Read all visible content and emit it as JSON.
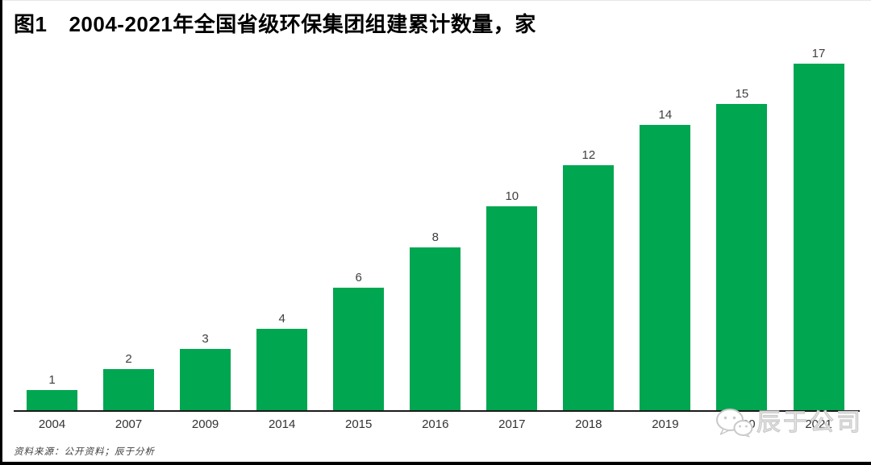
{
  "header": {
    "figure_label": "图1",
    "title": "2004-2021年全国省级环保集团组建累计数量，家"
  },
  "chart_data": {
    "type": "bar",
    "title": "图1 2004-2021年全国省级环保集团组建累计数量，家",
    "categories": [
      "2004",
      "2007",
      "2009",
      "2014",
      "2015",
      "2016",
      "2017",
      "2018",
      "2019",
      "2020",
      "2021"
    ],
    "values": [
      1,
      2,
      3,
      4,
      6,
      8,
      10,
      12,
      14,
      15,
      17
    ],
    "xlabel": "",
    "ylabel": "家",
    "ylim": [
      0,
      17
    ],
    "grid": false,
    "legend": "none",
    "value_labels_shown": true,
    "bar_color": "#00A650",
    "label_color": "#3f3f3f",
    "axis_color": "#1a1a1a"
  },
  "footer": {
    "source": "资料来源：公开资料；辰于分析"
  },
  "watermark": {
    "text": "辰于公司",
    "icon": "wechat-icon",
    "color": "#c9c9c9"
  }
}
